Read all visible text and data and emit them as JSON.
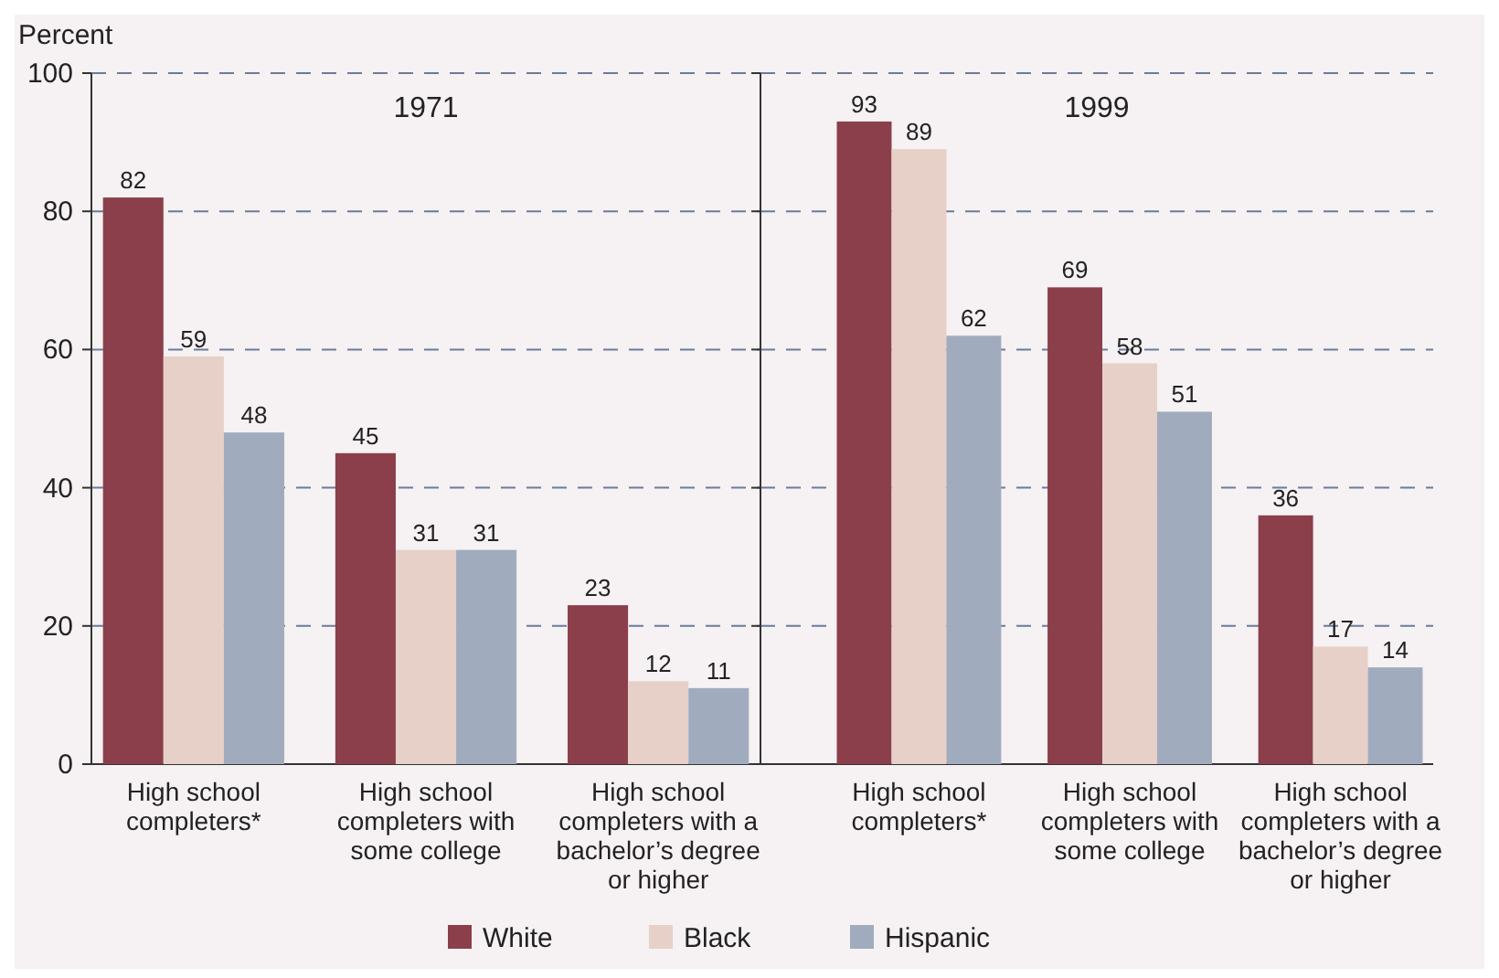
{
  "chart_data": [
    {
      "type": "bar",
      "title": "1971",
      "ylabel": "Percent",
      "categories": [
        "High school completers*",
        "High school completers with some college",
        "High school completers with a bachelor’s degree or higher"
      ],
      "series": [
        {
          "name": "White",
          "color": "#8b3f4a",
          "values": [
            82,
            45,
            23
          ]
        },
        {
          "name": "Black",
          "color": "#e6d0c8",
          "values": [
            59,
            31,
            12
          ]
        },
        {
          "name": "Hispanic",
          "color": "#a0acbe",
          "values": [
            48,
            31,
            11
          ]
        }
      ],
      "ylim": [
        0,
        100
      ],
      "yticks": [
        0,
        20,
        40,
        60,
        80,
        100
      ],
      "grid": "y",
      "data_labels": true,
      "legend": "bottom"
    },
    {
      "type": "bar",
      "title": "1999",
      "categories": [
        "High school completers*",
        "High school completers with some college",
        "High school completers with a bachelor’s degree or higher"
      ],
      "series": [
        {
          "color": "#8b3f4a",
          "values": [
            93,
            69,
            36
          ]
        },
        {
          "color": "#e6d0c8",
          "values": [
            89,
            58,
            17
          ]
        },
        {
          "color": "#a0acbe",
          "values": [
            62,
            51,
            14
          ]
        }
      ],
      "ylim": [
        0,
        100
      ],
      "yticks": [
        0,
        20,
        40,
        60,
        80,
        100
      ],
      "grid": "y",
      "data_labels": true,
      "tick_labels": "x"
    }
  ]
}
